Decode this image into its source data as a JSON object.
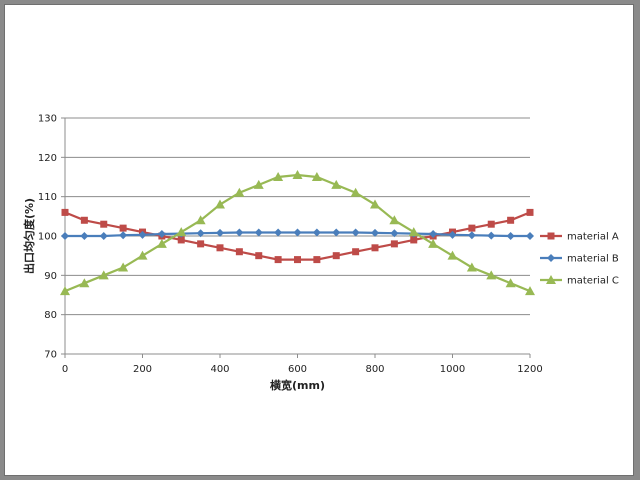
{
  "chart_data": {
    "type": "line",
    "xlabel": "横宽(mm)",
    "ylabel": "出口均匀度(%)",
    "x": [
      0,
      50,
      100,
      150,
      200,
      250,
      300,
      350,
      400,
      450,
      500,
      550,
      600,
      650,
      700,
      750,
      800,
      850,
      900,
      950,
      1000,
      1050,
      1100,
      1150,
      1200
    ],
    "xlim": [
      0,
      1200
    ],
    "ylim": [
      70,
      130
    ],
    "xticks": [
      0,
      200,
      400,
      600,
      800,
      1000,
      1200
    ],
    "yticks": [
      70,
      80,
      90,
      100,
      110,
      120,
      130
    ],
    "grid": "horizontal",
    "legend_position": "right",
    "series": [
      {
        "name": "material A",
        "color": "#be4b48",
        "marker": "square",
        "values": [
          106,
          104,
          103,
          102,
          101,
          100,
          99,
          98,
          97,
          96,
          95,
          94,
          94,
          94,
          95,
          96,
          97,
          98,
          99,
          100,
          101,
          102,
          103,
          104,
          106
        ]
      },
      {
        "name": "material B",
        "color": "#4a7ebb",
        "marker": "diamond",
        "values": [
          100,
          100,
          100,
          100.2,
          100.3,
          100.5,
          100.6,
          100.7,
          100.8,
          100.9,
          100.9,
          100.9,
          100.9,
          100.9,
          100.9,
          100.9,
          100.8,
          100.7,
          100.6,
          100.5,
          100.3,
          100.2,
          100.1,
          100,
          100
        ]
      },
      {
        "name": "material C",
        "color": "#98b954",
        "marker": "triangle",
        "values": [
          86,
          88,
          90,
          92,
          95,
          98,
          101,
          104,
          108,
          111,
          113,
          115,
          115.5,
          115,
          113,
          111,
          108,
          104,
          101,
          98,
          95,
          92,
          90,
          88,
          86
        ]
      }
    ]
  }
}
